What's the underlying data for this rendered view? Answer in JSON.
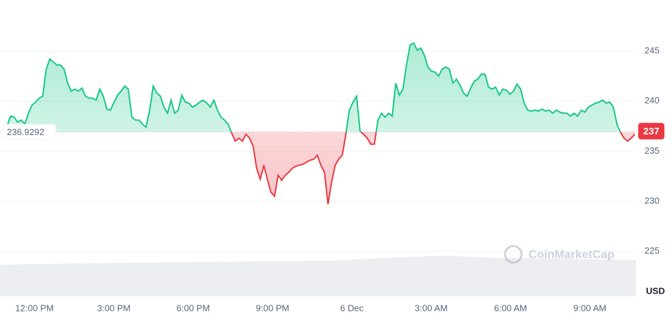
{
  "chart_data": {
    "type": "line",
    "values": [
      237.2,
      237.5,
      238.5,
      238.4,
      237.9,
      238.1,
      237.7,
      238.8,
      239.6,
      239.9,
      240.3,
      240.5,
      243.2,
      244.2,
      243.9,
      243.6,
      243.6,
      243.2,
      241.8,
      241.0,
      241.2,
      241.0,
      241.3,
      240.5,
      240.3,
      240.3,
      240.1,
      241.2,
      240.5,
      239.2,
      239.1,
      239.9,
      240.6,
      241.0,
      241.5,
      241.2,
      238.4,
      238.1,
      238.1,
      237.7,
      237.4,
      239.1,
      241.5,
      240.8,
      240.5,
      239.4,
      238.8,
      240.1,
      238.8,
      239.1,
      240.6,
      239.9,
      239.8,
      239.4,
      239.6,
      239.9,
      240.1,
      239.8,
      239.4,
      240.1,
      239.1,
      238.4,
      238.1,
      237.7,
      236.8,
      236.0,
      236.3,
      236.0,
      236.7,
      236.3,
      235.5,
      233.3,
      232.2,
      233.6,
      232.2,
      230.9,
      230.5,
      232.6,
      232.1,
      232.6,
      232.9,
      233.3,
      233.5,
      233.6,
      233.7,
      233.9,
      234.1,
      234.2,
      234.6,
      233.6,
      232.9,
      229.7,
      231.9,
      233.6,
      234.2,
      234.6,
      236.7,
      239.1,
      239.9,
      240.5,
      237.0,
      236.7,
      236.3,
      235.7,
      235.7,
      238.1,
      238.8,
      238.4,
      238.8,
      238.5,
      241.8,
      240.6,
      241.2,
      243.6,
      245.6,
      245.8,
      245.1,
      245.3,
      244.6,
      243.4,
      243.0,
      242.9,
      242.5,
      243.2,
      243.4,
      243.2,
      241.8,
      242.2,
      241.6,
      240.8,
      240.5,
      241.3,
      242.0,
      242.2,
      242.7,
      242.7,
      241.4,
      241.2,
      241.4,
      240.6,
      241.2,
      241.1,
      240.7,
      241.0,
      241.7,
      241.2,
      239.8,
      239.1,
      239.0,
      239.1,
      239.0,
      239.2,
      239.0,
      239.1,
      238.8,
      239.1,
      238.9,
      238.8,
      238.8,
      238.5,
      238.8,
      238.5,
      239.1,
      238.9,
      239.4,
      239.6,
      239.8,
      239.9,
      240.1,
      239.8,
      239.9,
      239.4,
      237.7,
      236.9,
      236.3,
      236.0,
      236.3,
      236.7
    ],
    "up_color": "#16c784",
    "down_color": "#ea3943",
    "reference_price": 236.9292,
    "current_price": 237,
    "ylim": [
      220.5,
      250.1
    ],
    "yticks": [
      225,
      230,
      235,
      240,
      245
    ],
    "grid": true,
    "x_labels": [
      "12:00 PM",
      "3:00 PM",
      "6:00 PM",
      "9:00 PM",
      "6 Dec",
      "3:00 AM",
      "6:00 AM",
      "9:00 AM"
    ],
    "currency": "USD",
    "watermark": "CoinMarketCap"
  }
}
